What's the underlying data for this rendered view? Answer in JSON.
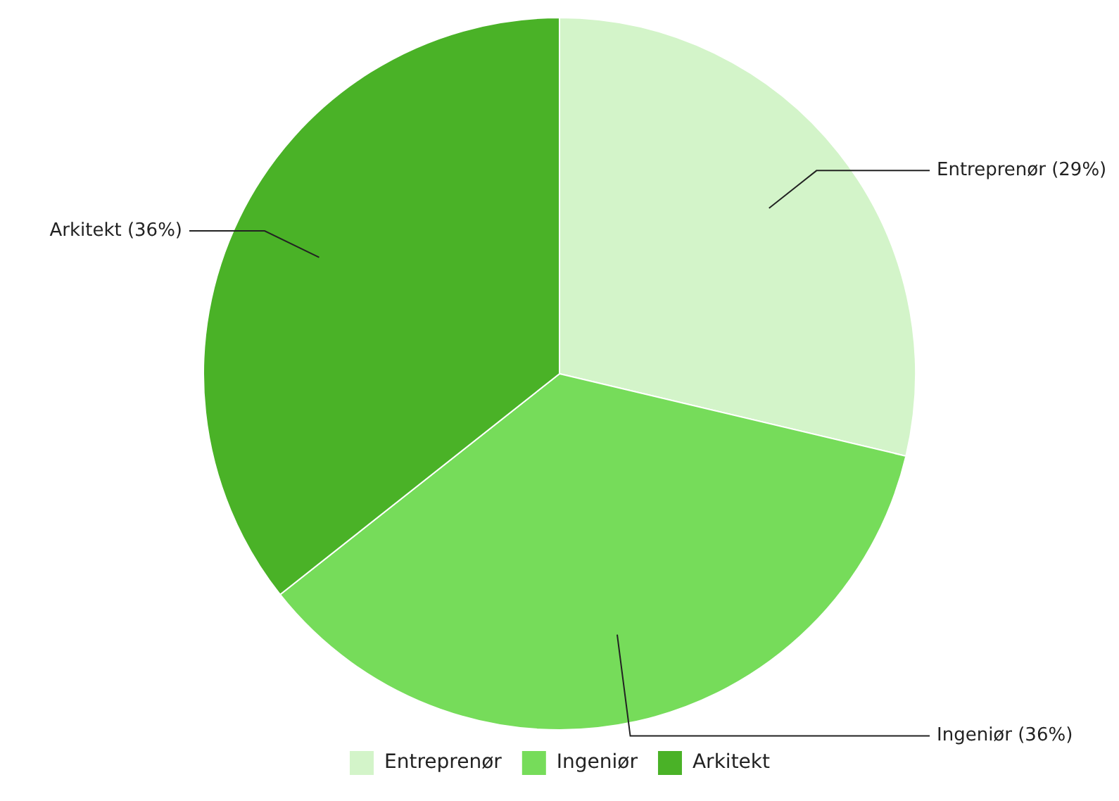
{
  "chart_data": {
    "type": "pie",
    "categories": [
      "Entreprenør",
      "Ingeniør",
      "Arkitekt"
    ],
    "values": [
      29,
      36,
      36
    ],
    "colors": [
      "#d3f4c9",
      "#76dc5a",
      "#4ab227"
    ],
    "value_labels": [
      "Entreprenør (29%)",
      "Ingeniør (36%)",
      "Arkitekt (36%)"
    ],
    "legend": "bottom"
  }
}
